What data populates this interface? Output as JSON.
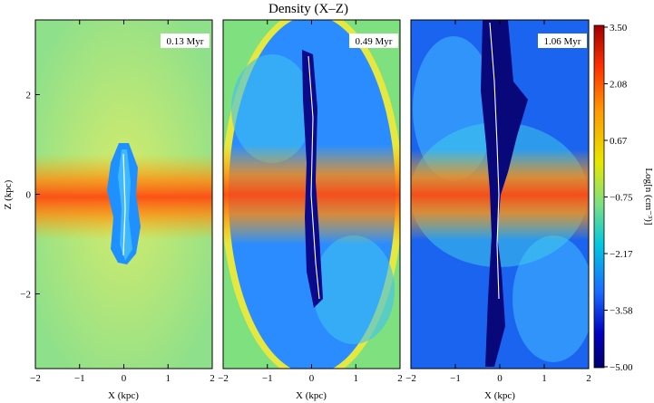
{
  "figure": {
    "title": "Density (X–Z)",
    "panels": [
      {
        "time_label": "0.13 Myr",
        "xlabel": "X (kpc)",
        "x_ticks": [
          "−2",
          "−1",
          "0",
          "1",
          "2"
        ]
      },
      {
        "time_label": "0.49 Myr",
        "xlabel": "X (kpc)",
        "x_ticks": [
          "−2",
          "−1",
          "0",
          "1",
          "2"
        ]
      },
      {
        "time_label": "1.06 Myr",
        "xlabel": "X (kpc)",
        "x_ticks": [
          "−2",
          "−1",
          "0",
          "1",
          "2"
        ]
      }
    ],
    "ylabel": "Z (kpc)",
    "y_ticks": [
      "2",
      "0",
      "−2"
    ],
    "colorbar": {
      "label": "Log[n (cm⁻³)]",
      "ticks": [
        "3.50",
        "2.08",
        "0.67",
        "−0.75",
        "−2.17",
        "−3.58",
        "−5.00"
      ],
      "colors": [
        "#b00000",
        "#ff3000",
        "#ff9a00",
        "#e8e800",
        "#7fe07f",
        "#00c8e0",
        "#1060ff",
        "#0000b0",
        "#000070"
      ]
    }
  }
}
